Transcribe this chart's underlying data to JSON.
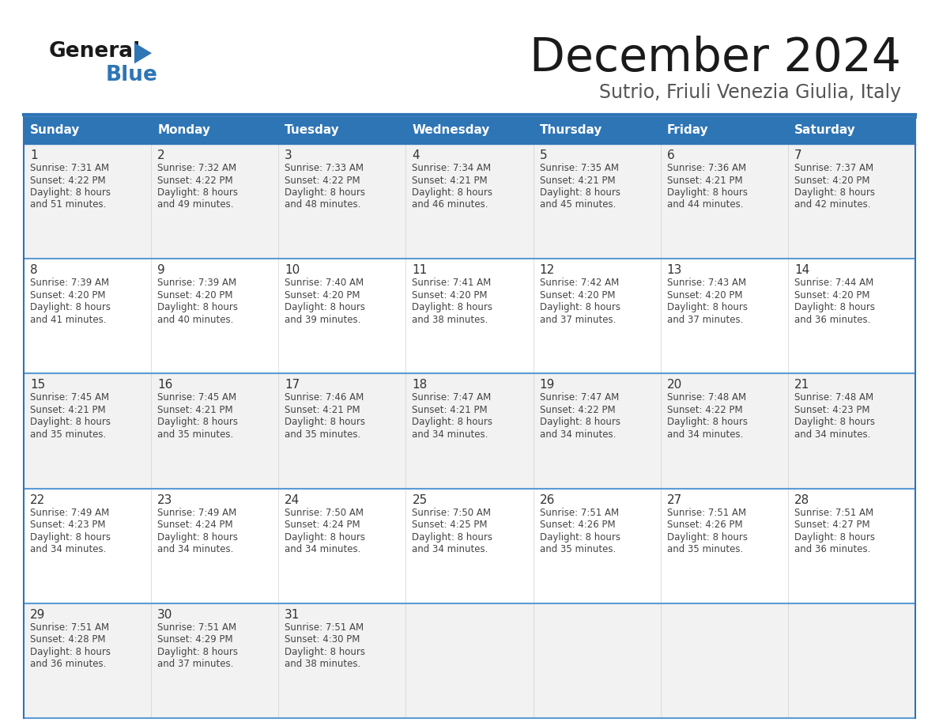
{
  "title": "December 2024",
  "subtitle": "Sutrio, Friuli Venezia Giulia, Italy",
  "days_of_week": [
    "Sunday",
    "Monday",
    "Tuesday",
    "Wednesday",
    "Thursday",
    "Friday",
    "Saturday"
  ],
  "header_bg": "#2E75B6",
  "header_text": "#FFFFFF",
  "cell_bg_odd": "#F2F2F2",
  "cell_bg_even": "#FFFFFF",
  "border_color": "#2E75B6",
  "separator_color": "#5B9BD5",
  "text_color": "#444444",
  "day_num_color": "#333333",
  "logo_general_color": "#1a1a1a",
  "logo_blue_color": "#2E75B6",
  "title_color": "#1a1a1a",
  "subtitle_color": "#555555",
  "calendar_data": [
    [
      {
        "day": 1,
        "sunrise": "7:31 AM",
        "sunset": "4:22 PM",
        "daylight": "8 hours and 51 minutes."
      },
      {
        "day": 2,
        "sunrise": "7:32 AM",
        "sunset": "4:22 PM",
        "daylight": "8 hours and 49 minutes."
      },
      {
        "day": 3,
        "sunrise": "7:33 AM",
        "sunset": "4:22 PM",
        "daylight": "8 hours and 48 minutes."
      },
      {
        "day": 4,
        "sunrise": "7:34 AM",
        "sunset": "4:21 PM",
        "daylight": "8 hours and 46 minutes."
      },
      {
        "day": 5,
        "sunrise": "7:35 AM",
        "sunset": "4:21 PM",
        "daylight": "8 hours and 45 minutes."
      },
      {
        "day": 6,
        "sunrise": "7:36 AM",
        "sunset": "4:21 PM",
        "daylight": "8 hours and 44 minutes."
      },
      {
        "day": 7,
        "sunrise": "7:37 AM",
        "sunset": "4:20 PM",
        "daylight": "8 hours and 42 minutes."
      }
    ],
    [
      {
        "day": 8,
        "sunrise": "7:39 AM",
        "sunset": "4:20 PM",
        "daylight": "8 hours and 41 minutes."
      },
      {
        "day": 9,
        "sunrise": "7:39 AM",
        "sunset": "4:20 PM",
        "daylight": "8 hours and 40 minutes."
      },
      {
        "day": 10,
        "sunrise": "7:40 AM",
        "sunset": "4:20 PM",
        "daylight": "8 hours and 39 minutes."
      },
      {
        "day": 11,
        "sunrise": "7:41 AM",
        "sunset": "4:20 PM",
        "daylight": "8 hours and 38 minutes."
      },
      {
        "day": 12,
        "sunrise": "7:42 AM",
        "sunset": "4:20 PM",
        "daylight": "8 hours and 37 minutes."
      },
      {
        "day": 13,
        "sunrise": "7:43 AM",
        "sunset": "4:20 PM",
        "daylight": "8 hours and 37 minutes."
      },
      {
        "day": 14,
        "sunrise": "7:44 AM",
        "sunset": "4:20 PM",
        "daylight": "8 hours and 36 minutes."
      }
    ],
    [
      {
        "day": 15,
        "sunrise": "7:45 AM",
        "sunset": "4:21 PM",
        "daylight": "8 hours and 35 minutes."
      },
      {
        "day": 16,
        "sunrise": "7:45 AM",
        "sunset": "4:21 PM",
        "daylight": "8 hours and 35 minutes."
      },
      {
        "day": 17,
        "sunrise": "7:46 AM",
        "sunset": "4:21 PM",
        "daylight": "8 hours and 35 minutes."
      },
      {
        "day": 18,
        "sunrise": "7:47 AM",
        "sunset": "4:21 PM",
        "daylight": "8 hours and 34 minutes."
      },
      {
        "day": 19,
        "sunrise": "7:47 AM",
        "sunset": "4:22 PM",
        "daylight": "8 hours and 34 minutes."
      },
      {
        "day": 20,
        "sunrise": "7:48 AM",
        "sunset": "4:22 PM",
        "daylight": "8 hours and 34 minutes."
      },
      {
        "day": 21,
        "sunrise": "7:48 AM",
        "sunset": "4:23 PM",
        "daylight": "8 hours and 34 minutes."
      }
    ],
    [
      {
        "day": 22,
        "sunrise": "7:49 AM",
        "sunset": "4:23 PM",
        "daylight": "8 hours and 34 minutes."
      },
      {
        "day": 23,
        "sunrise": "7:49 AM",
        "sunset": "4:24 PM",
        "daylight": "8 hours and 34 minutes."
      },
      {
        "day": 24,
        "sunrise": "7:50 AM",
        "sunset": "4:24 PM",
        "daylight": "8 hours and 34 minutes."
      },
      {
        "day": 25,
        "sunrise": "7:50 AM",
        "sunset": "4:25 PM",
        "daylight": "8 hours and 34 minutes."
      },
      {
        "day": 26,
        "sunrise": "7:51 AM",
        "sunset": "4:26 PM",
        "daylight": "8 hours and 35 minutes."
      },
      {
        "day": 27,
        "sunrise": "7:51 AM",
        "sunset": "4:26 PM",
        "daylight": "8 hours and 35 minutes."
      },
      {
        "day": 28,
        "sunrise": "7:51 AM",
        "sunset": "4:27 PM",
        "daylight": "8 hours and 36 minutes."
      }
    ],
    [
      {
        "day": 29,
        "sunrise": "7:51 AM",
        "sunset": "4:28 PM",
        "daylight": "8 hours and 36 minutes."
      },
      {
        "day": 30,
        "sunrise": "7:51 AM",
        "sunset": "4:29 PM",
        "daylight": "8 hours and 37 minutes."
      },
      {
        "day": 31,
        "sunrise": "7:51 AM",
        "sunset": "4:30 PM",
        "daylight": "8 hours and 38 minutes."
      },
      null,
      null,
      null,
      null
    ]
  ]
}
